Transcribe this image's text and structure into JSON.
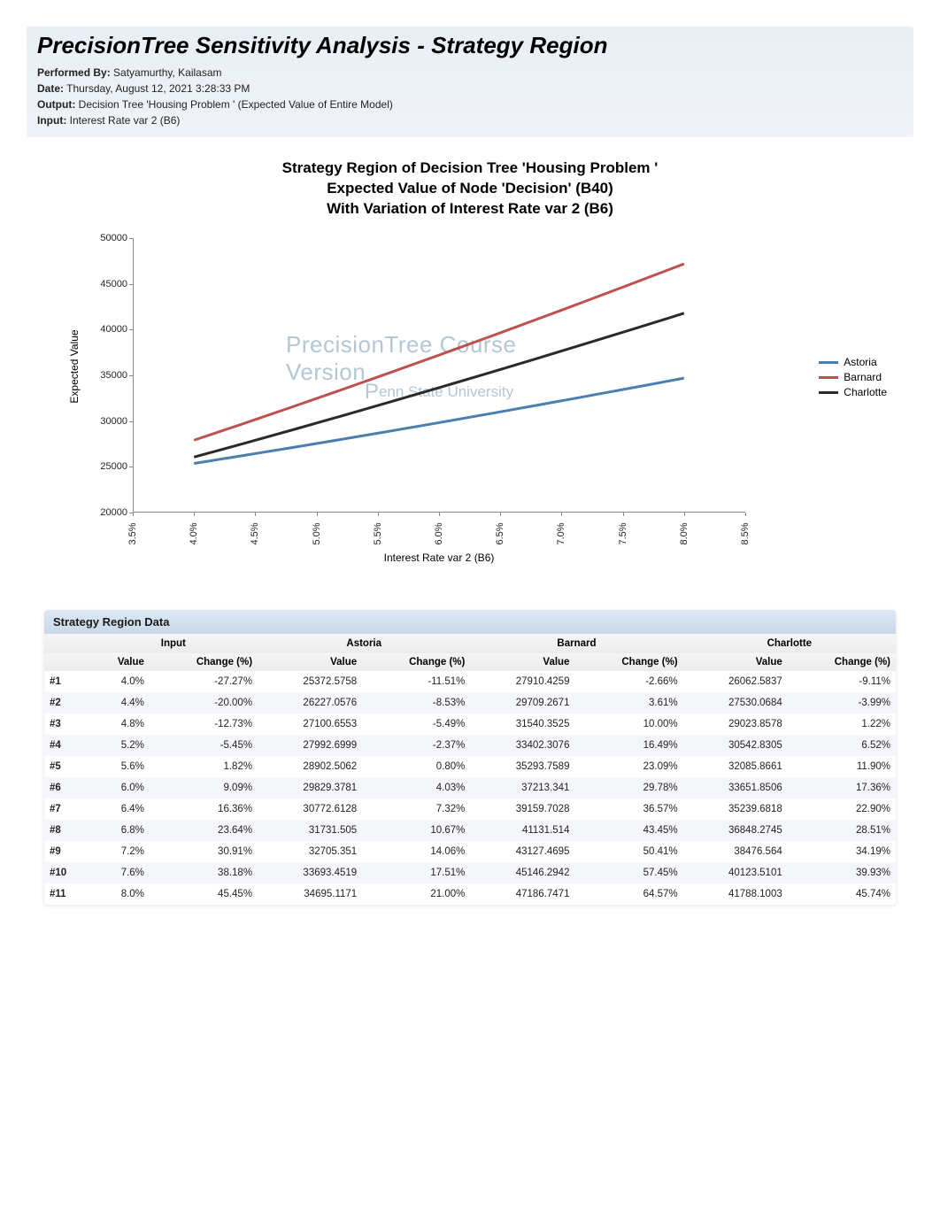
{
  "header": {
    "title": "PrecisionTree Sensitivity Analysis - Strategy Region",
    "performedBy_label": "Performed By:",
    "performedBy_value": "Satyamurthy, Kailasam",
    "date_label": "Date:",
    "date_value": "Thursday, August 12, 2021 3:28:33 PM",
    "output_label": "Output:",
    "output_value": "Decision Tree 'Housing Problem ' (Expected Value of Entire Model)",
    "input_label": "Input:",
    "input_value": "Interest Rate var 2 (B6)"
  },
  "chart": {
    "type": "line",
    "title_l1": "Strategy Region of Decision Tree 'Housing Problem '",
    "title_l2": "Expected Value of Node 'Decision' (B40)",
    "title_l3": "With Variation of Interest Rate var 2 (B6)",
    "x_label": "Interest Rate var 2 (B6)",
    "y_label": "Expected Value",
    "x_ticks": [
      "3.5%",
      "4.0%",
      "4.5%",
      "5.0%",
      "5.5%",
      "6.0%",
      "6.5%",
      "7.0%",
      "7.5%",
      "8.0%",
      "8.5%"
    ],
    "y_ticks": [
      20000,
      25000,
      30000,
      35000,
      40000,
      45000,
      50000
    ],
    "y_min": 20000,
    "y_max": 50000,
    "x_min": 3.5,
    "x_max": 8.5,
    "watermark1": "PrecisionTree Course Version",
    "watermark2_prefix": "P",
    "watermark2_rest": "enn State University",
    "series": [
      {
        "name": "Astoria",
        "color": "#4a7fb0",
        "values": [
          [
            4.0,
            25372.58
          ],
          [
            4.4,
            26227.06
          ],
          [
            4.8,
            27100.66
          ],
          [
            5.2,
            27992.7
          ],
          [
            5.6,
            28902.51
          ],
          [
            6.0,
            29829.38
          ],
          [
            6.4,
            30772.61
          ],
          [
            6.8,
            31731.51
          ],
          [
            7.2,
            32705.35
          ],
          [
            7.6,
            33693.45
          ],
          [
            8.0,
            34695.12
          ]
        ]
      },
      {
        "name": "Barnard",
        "color": "#c0504d",
        "values": [
          [
            4.0,
            27910.43
          ],
          [
            4.4,
            29709.27
          ],
          [
            4.8,
            31540.35
          ],
          [
            5.2,
            33402.31
          ],
          [
            5.6,
            35293.76
          ],
          [
            6.0,
            37213.34
          ],
          [
            6.4,
            39159.7
          ],
          [
            6.8,
            41131.51
          ],
          [
            7.2,
            43127.47
          ],
          [
            7.6,
            45146.29
          ],
          [
            8.0,
            47186.75
          ]
        ]
      },
      {
        "name": "Charlotte",
        "color": "#2a2a2a",
        "values": [
          [
            4.0,
            26062.58
          ],
          [
            4.4,
            27530.07
          ],
          [
            4.8,
            29023.86
          ],
          [
            5.2,
            30542.83
          ],
          [
            5.6,
            32085.87
          ],
          [
            6.0,
            33651.85
          ],
          [
            6.4,
            35239.68
          ],
          [
            6.8,
            36848.27
          ],
          [
            7.2,
            38476.56
          ],
          [
            7.6,
            40123.51
          ],
          [
            8.0,
            41788.1
          ]
        ]
      }
    ],
    "line_width": 3,
    "label_fontsize": 12,
    "tick_fontsize": 11,
    "title_fontsize": 17
  },
  "table": {
    "title": "Strategy Region Data",
    "groups": [
      "",
      "Input",
      "Astoria",
      "Barnard",
      "Charlotte"
    ],
    "sub_headers": [
      "",
      "Value",
      "Change (%)",
      "Value",
      "Change (%)",
      "Value",
      "Change (%)",
      "Value",
      "Change (%)"
    ],
    "rows": [
      [
        "#1",
        "4.0%",
        "-27.27%",
        "25372.5758",
        "-11.51%",
        "27910.4259",
        "-2.66%",
        "26062.5837",
        "-9.11%"
      ],
      [
        "#2",
        "4.4%",
        "-20.00%",
        "26227.0576",
        "-8.53%",
        "29709.2671",
        "3.61%",
        "27530.0684",
        "-3.99%"
      ],
      [
        "#3",
        "4.8%",
        "-12.73%",
        "27100.6553",
        "-5.49%",
        "31540.3525",
        "10.00%",
        "29023.8578",
        "1.22%"
      ],
      [
        "#4",
        "5.2%",
        "-5.45%",
        "27992.6999",
        "-2.37%",
        "33402.3076",
        "16.49%",
        "30542.8305",
        "6.52%"
      ],
      [
        "#5",
        "5.6%",
        "1.82%",
        "28902.5062",
        "0.80%",
        "35293.7589",
        "23.09%",
        "32085.8661",
        "11.90%"
      ],
      [
        "#6",
        "6.0%",
        "9.09%",
        "29829.3781",
        "4.03%",
        "37213.341",
        "29.78%",
        "33651.8506",
        "17.36%"
      ],
      [
        "#7",
        "6.4%",
        "16.36%",
        "30772.6128",
        "7.32%",
        "39159.7028",
        "36.57%",
        "35239.6818",
        "22.90%"
      ],
      [
        "#8",
        "6.8%",
        "23.64%",
        "31731.505",
        "10.67%",
        "41131.514",
        "43.45%",
        "36848.2745",
        "28.51%"
      ],
      [
        "#9",
        "7.2%",
        "30.91%",
        "32705.351",
        "14.06%",
        "43127.4695",
        "50.41%",
        "38476.564",
        "34.19%"
      ],
      [
        "#10",
        "7.6%",
        "38.18%",
        "33693.4519",
        "17.51%",
        "45146.2942",
        "57.45%",
        "40123.5101",
        "39.93%"
      ],
      [
        "#11",
        "8.0%",
        "45.45%",
        "34695.1171",
        "21.00%",
        "47186.7471",
        "64.57%",
        "41788.1003",
        "45.74%"
      ]
    ]
  }
}
